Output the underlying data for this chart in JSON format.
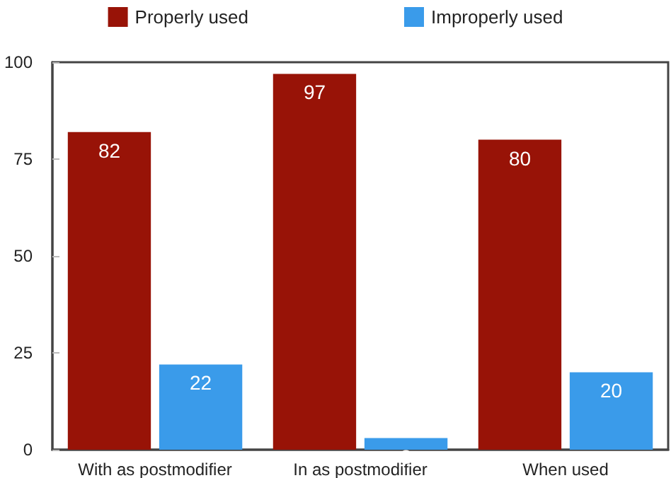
{
  "chart_data": {
    "type": "bar",
    "categories": [
      "With as postmodifier",
      "In as postmodifier",
      "When used"
    ],
    "series": [
      {
        "name": "Properly used",
        "color": "#981307",
        "values": [
          82,
          97,
          80
        ]
      },
      {
        "name": "Improperly used",
        "color": "#3a9bea",
        "values": [
          22,
          3,
          20
        ]
      }
    ],
    "ylim": [
      0,
      100
    ],
    "yticks": [
      0,
      25,
      50,
      75,
      100
    ],
    "grid": false,
    "legend": "top",
    "data_labels": true
  }
}
